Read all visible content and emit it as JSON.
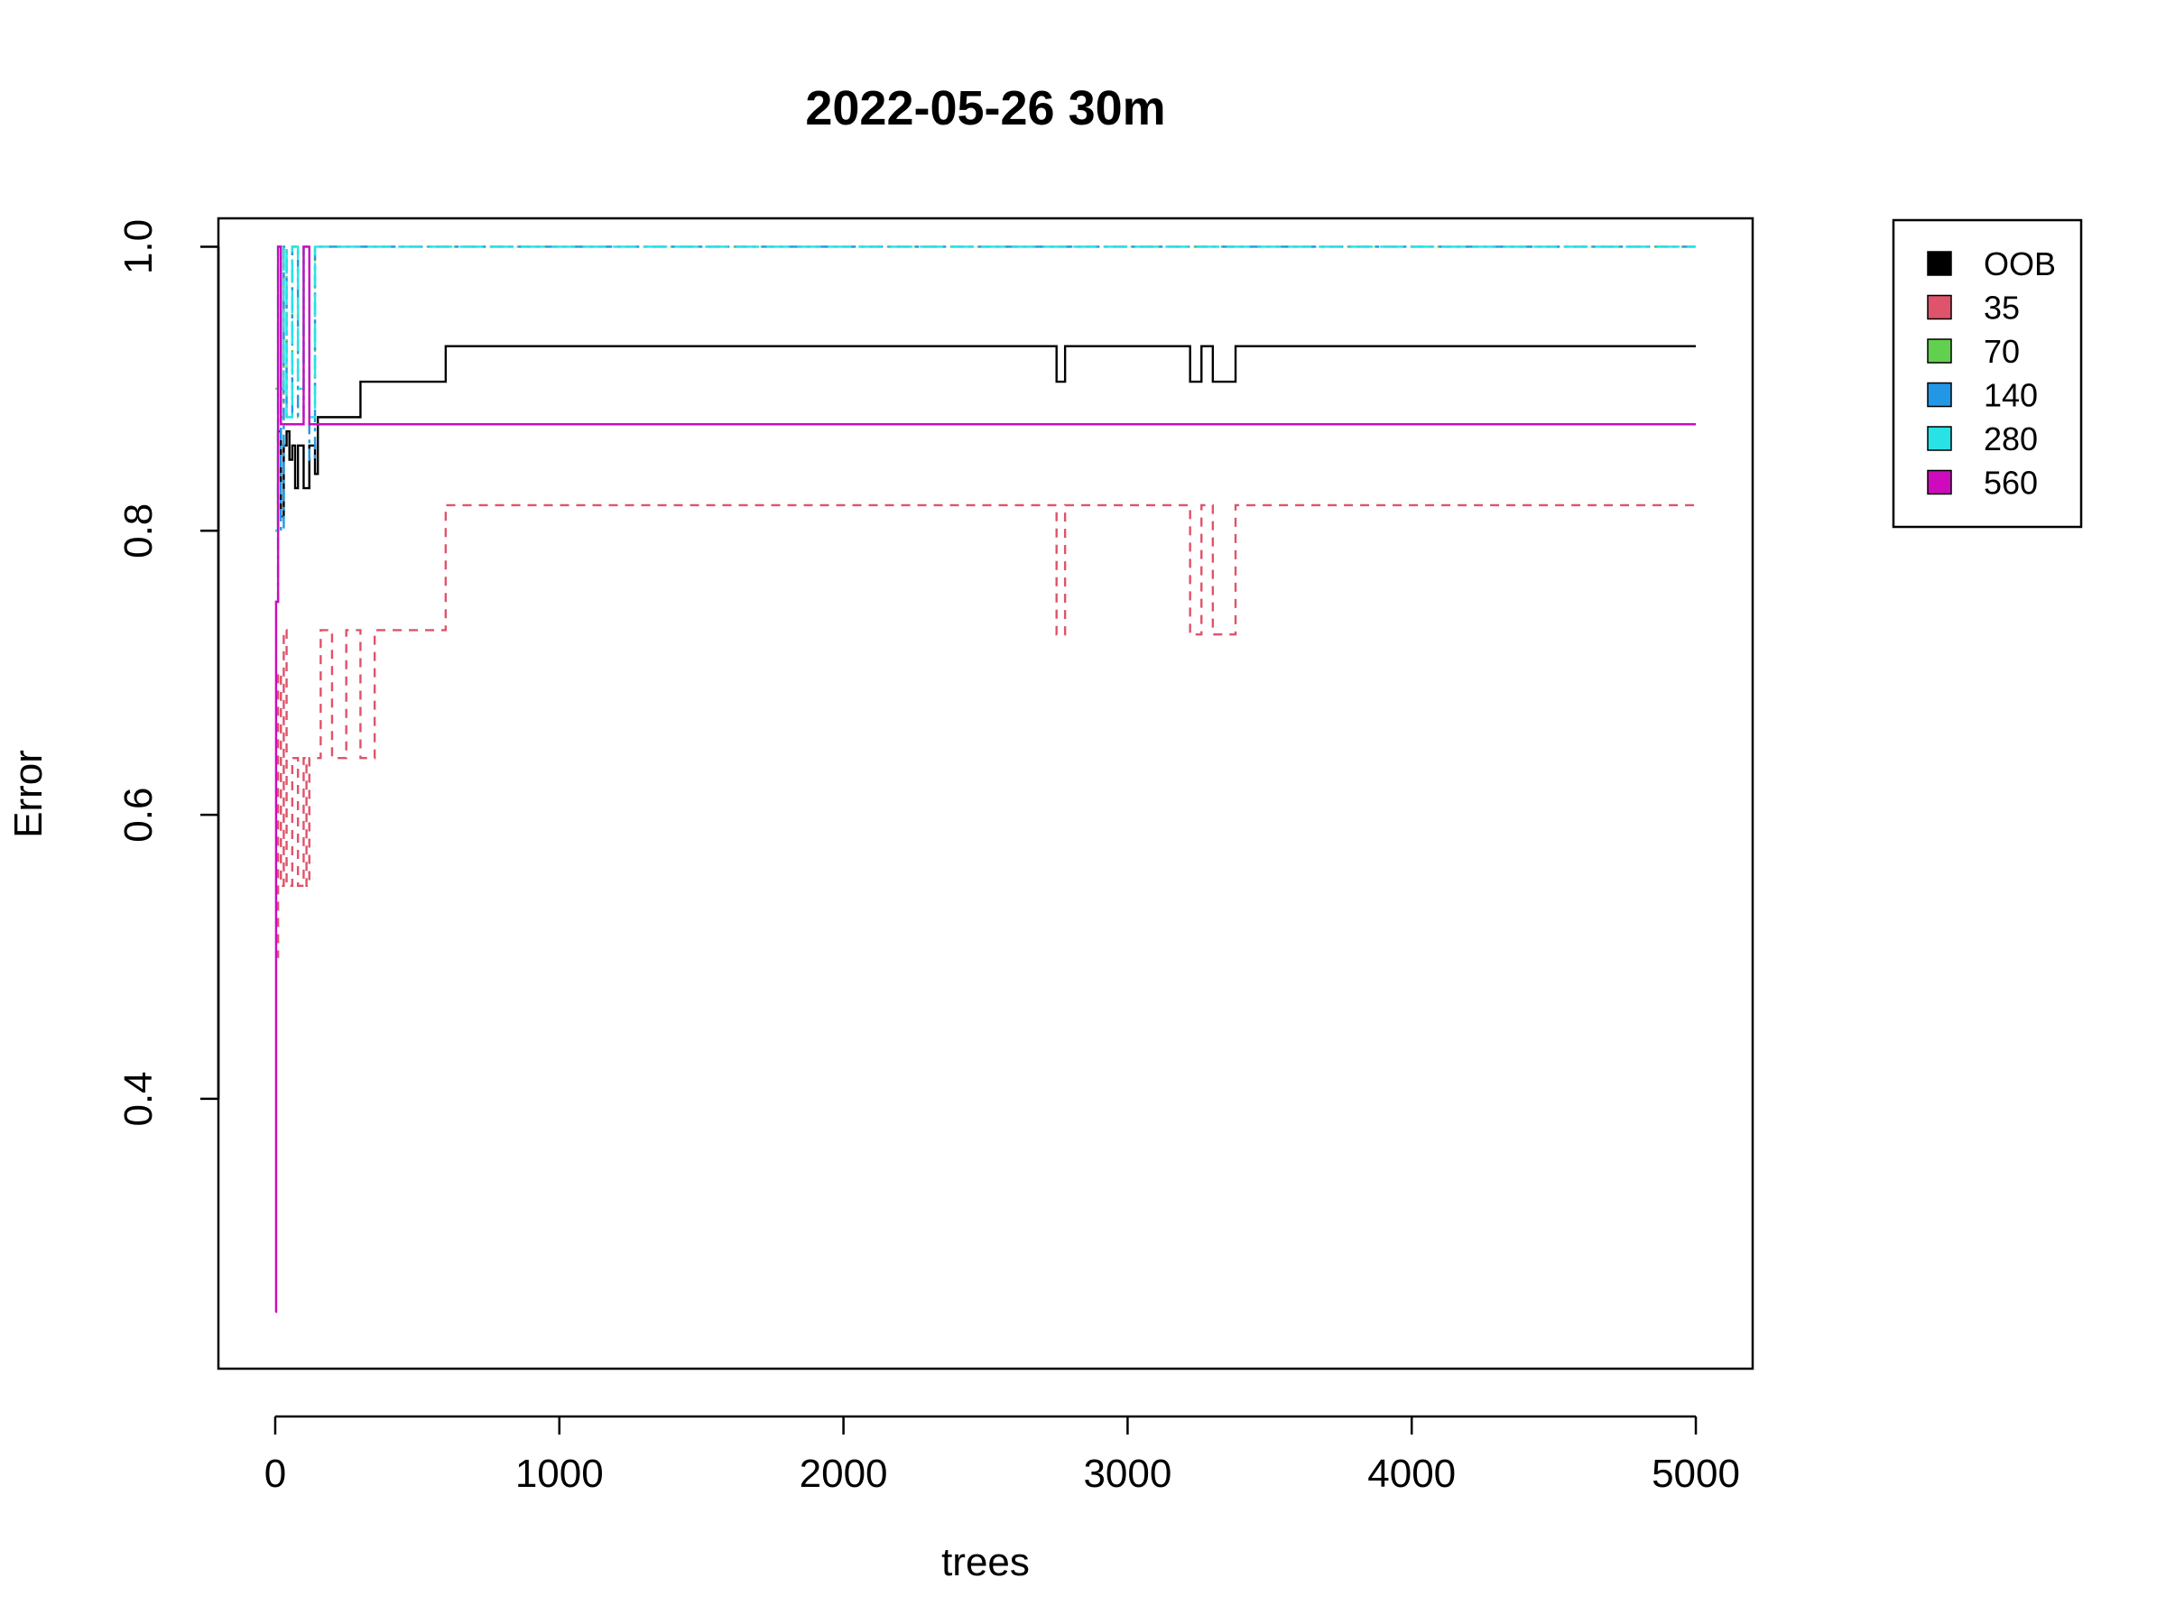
{
  "chart_data": {
    "type": "line",
    "title": "2022-05-26 30m",
    "xlabel": "trees",
    "ylabel": "Error",
    "xlim": [
      -200,
      5200
    ],
    "ylim": [
      0.21,
      1.02
    ],
    "xticks": [
      0,
      1000,
      2000,
      3000,
      4000,
      5000
    ],
    "xtick_labels": [
      "0",
      "1000",
      "2000",
      "3000",
      "4000",
      "5000"
    ],
    "yticks": [
      0.4,
      0.6,
      0.8,
      1.0
    ],
    "ytick_labels": [
      "0.4",
      "0.6",
      "0.8",
      "1.0"
    ],
    "grid": false,
    "legend_position": "top-right outside",
    "legend": [
      {
        "label": "OOB",
        "color": "#000000"
      },
      {
        "label": "35",
        "color": "#DF536B"
      },
      {
        "label": "70",
        "color": "#61D04F"
      },
      {
        "label": "140",
        "color": "#2297E6"
      },
      {
        "label": "280",
        "color": "#28E2E5"
      },
      {
        "label": "560",
        "color": "#CD0BBC"
      }
    ],
    "series": [
      {
        "name": "OOB",
        "color": "#000000",
        "dash": "",
        "x": [
          1,
          10,
          20,
          30,
          40,
          50,
          60,
          70,
          80,
          100,
          120,
          140,
          150,
          180,
          250,
          300,
          400,
          570,
          600,
          620,
          2750,
          2780,
          3220,
          3260,
          3300,
          3330,
          3380,
          5000
        ],
        "y": [
          0.8,
          0.87,
          0.81,
          0.86,
          0.87,
          0.85,
          0.86,
          0.83,
          0.86,
          0.83,
          0.86,
          0.84,
          0.88,
          0.88,
          0.88,
          0.905,
          0.905,
          0.905,
          0.93,
          0.93,
          0.905,
          0.93,
          0.905,
          0.93,
          0.905,
          0.905,
          0.93,
          0.93
        ]
      },
      {
        "name": "35",
        "color": "#DF536B",
        "dash": "10,8",
        "x": [
          1,
          10,
          20,
          30,
          40,
          60,
          80,
          100,
          110,
          120,
          140,
          160,
          200,
          250,
          300,
          350,
          400,
          560,
          600,
          620,
          2750,
          2780,
          3220,
          3260,
          3300,
          3330,
          3380,
          5000
        ],
        "y": [
          0.5,
          0.7,
          0.55,
          0.73,
          0.55,
          0.64,
          0.55,
          0.64,
          0.55,
          0.64,
          0.64,
          0.73,
          0.64,
          0.73,
          0.64,
          0.73,
          0.73,
          0.73,
          0.818,
          0.818,
          0.727,
          0.818,
          0.727,
          0.818,
          0.727,
          0.727,
          0.818,
          0.818
        ]
      },
      {
        "name": "70",
        "color": "#61D04F",
        "dash": "4,6",
        "x": [
          1,
          10,
          20,
          30,
          40,
          60,
          80,
          100,
          120,
          140,
          5000
        ],
        "y": [
          0.9,
          1.0,
          0.88,
          1.0,
          0.9,
          1.0,
          0.88,
          1.0,
          0.9,
          1.0,
          1.0
        ]
      },
      {
        "name": "140",
        "color": "#2297E6",
        "dash": "14,6,4,6",
        "x": [
          1,
          10,
          20,
          30,
          40,
          60,
          80,
          100,
          120,
          140,
          5000
        ],
        "y": [
          0.75,
          1.0,
          0.8,
          1.0,
          0.88,
          1.0,
          0.88,
          1.0,
          0.85,
          1.0,
          1.0
        ]
      },
      {
        "name": "280",
        "color": "#28E2E5",
        "dash": "26,8",
        "x": [
          1,
          10,
          20,
          30,
          40,
          60,
          80,
          100,
          120,
          140,
          5000
        ],
        "y": [
          0.8,
          1.0,
          0.9,
          1.0,
          0.88,
          1.0,
          0.9,
          1.0,
          0.88,
          1.0,
          1.0
        ]
      },
      {
        "name": "560",
        "color": "#CD0BBC",
        "dash": "",
        "x": [
          1,
          3,
          10,
          20,
          30,
          100,
          120,
          140,
          5000
        ],
        "y": [
          0.25,
          0.75,
          1.0,
          0.875,
          0.875,
          1.0,
          0.875,
          0.875,
          0.875
        ]
      }
    ]
  }
}
